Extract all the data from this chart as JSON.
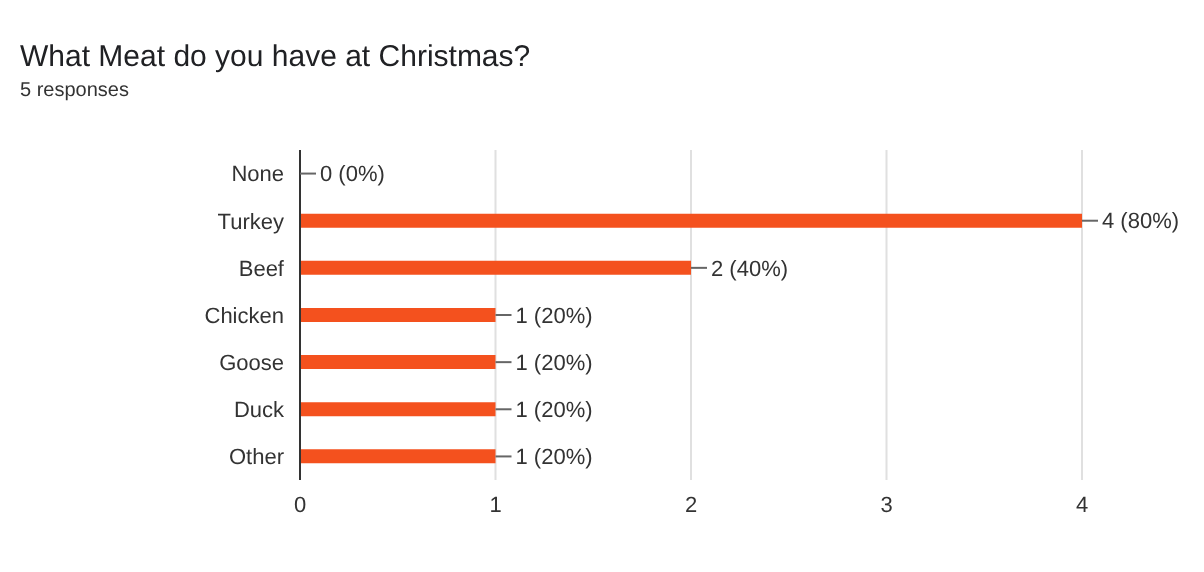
{
  "chart_data": {
    "type": "bar",
    "orientation": "horizontal",
    "title": "What Meat do you have at Christmas?",
    "subtitle": "5 responses",
    "categories": [
      "None",
      "Turkey",
      "Beef",
      "Chicken",
      "Goose",
      "Duck",
      "Other"
    ],
    "values": [
      0,
      4,
      2,
      1,
      1,
      1,
      1
    ],
    "value_labels": [
      "0 (0%)",
      "4 (80%)",
      "2 (40%)",
      "1 (20%)",
      "1 (20%)",
      "1 (20%)",
      "1 (20%)"
    ],
    "color": "#f4511e",
    "xlim": [
      0,
      4
    ],
    "xticks": [
      0,
      1,
      2,
      3,
      4
    ],
    "grid": "x",
    "legend": false
  }
}
